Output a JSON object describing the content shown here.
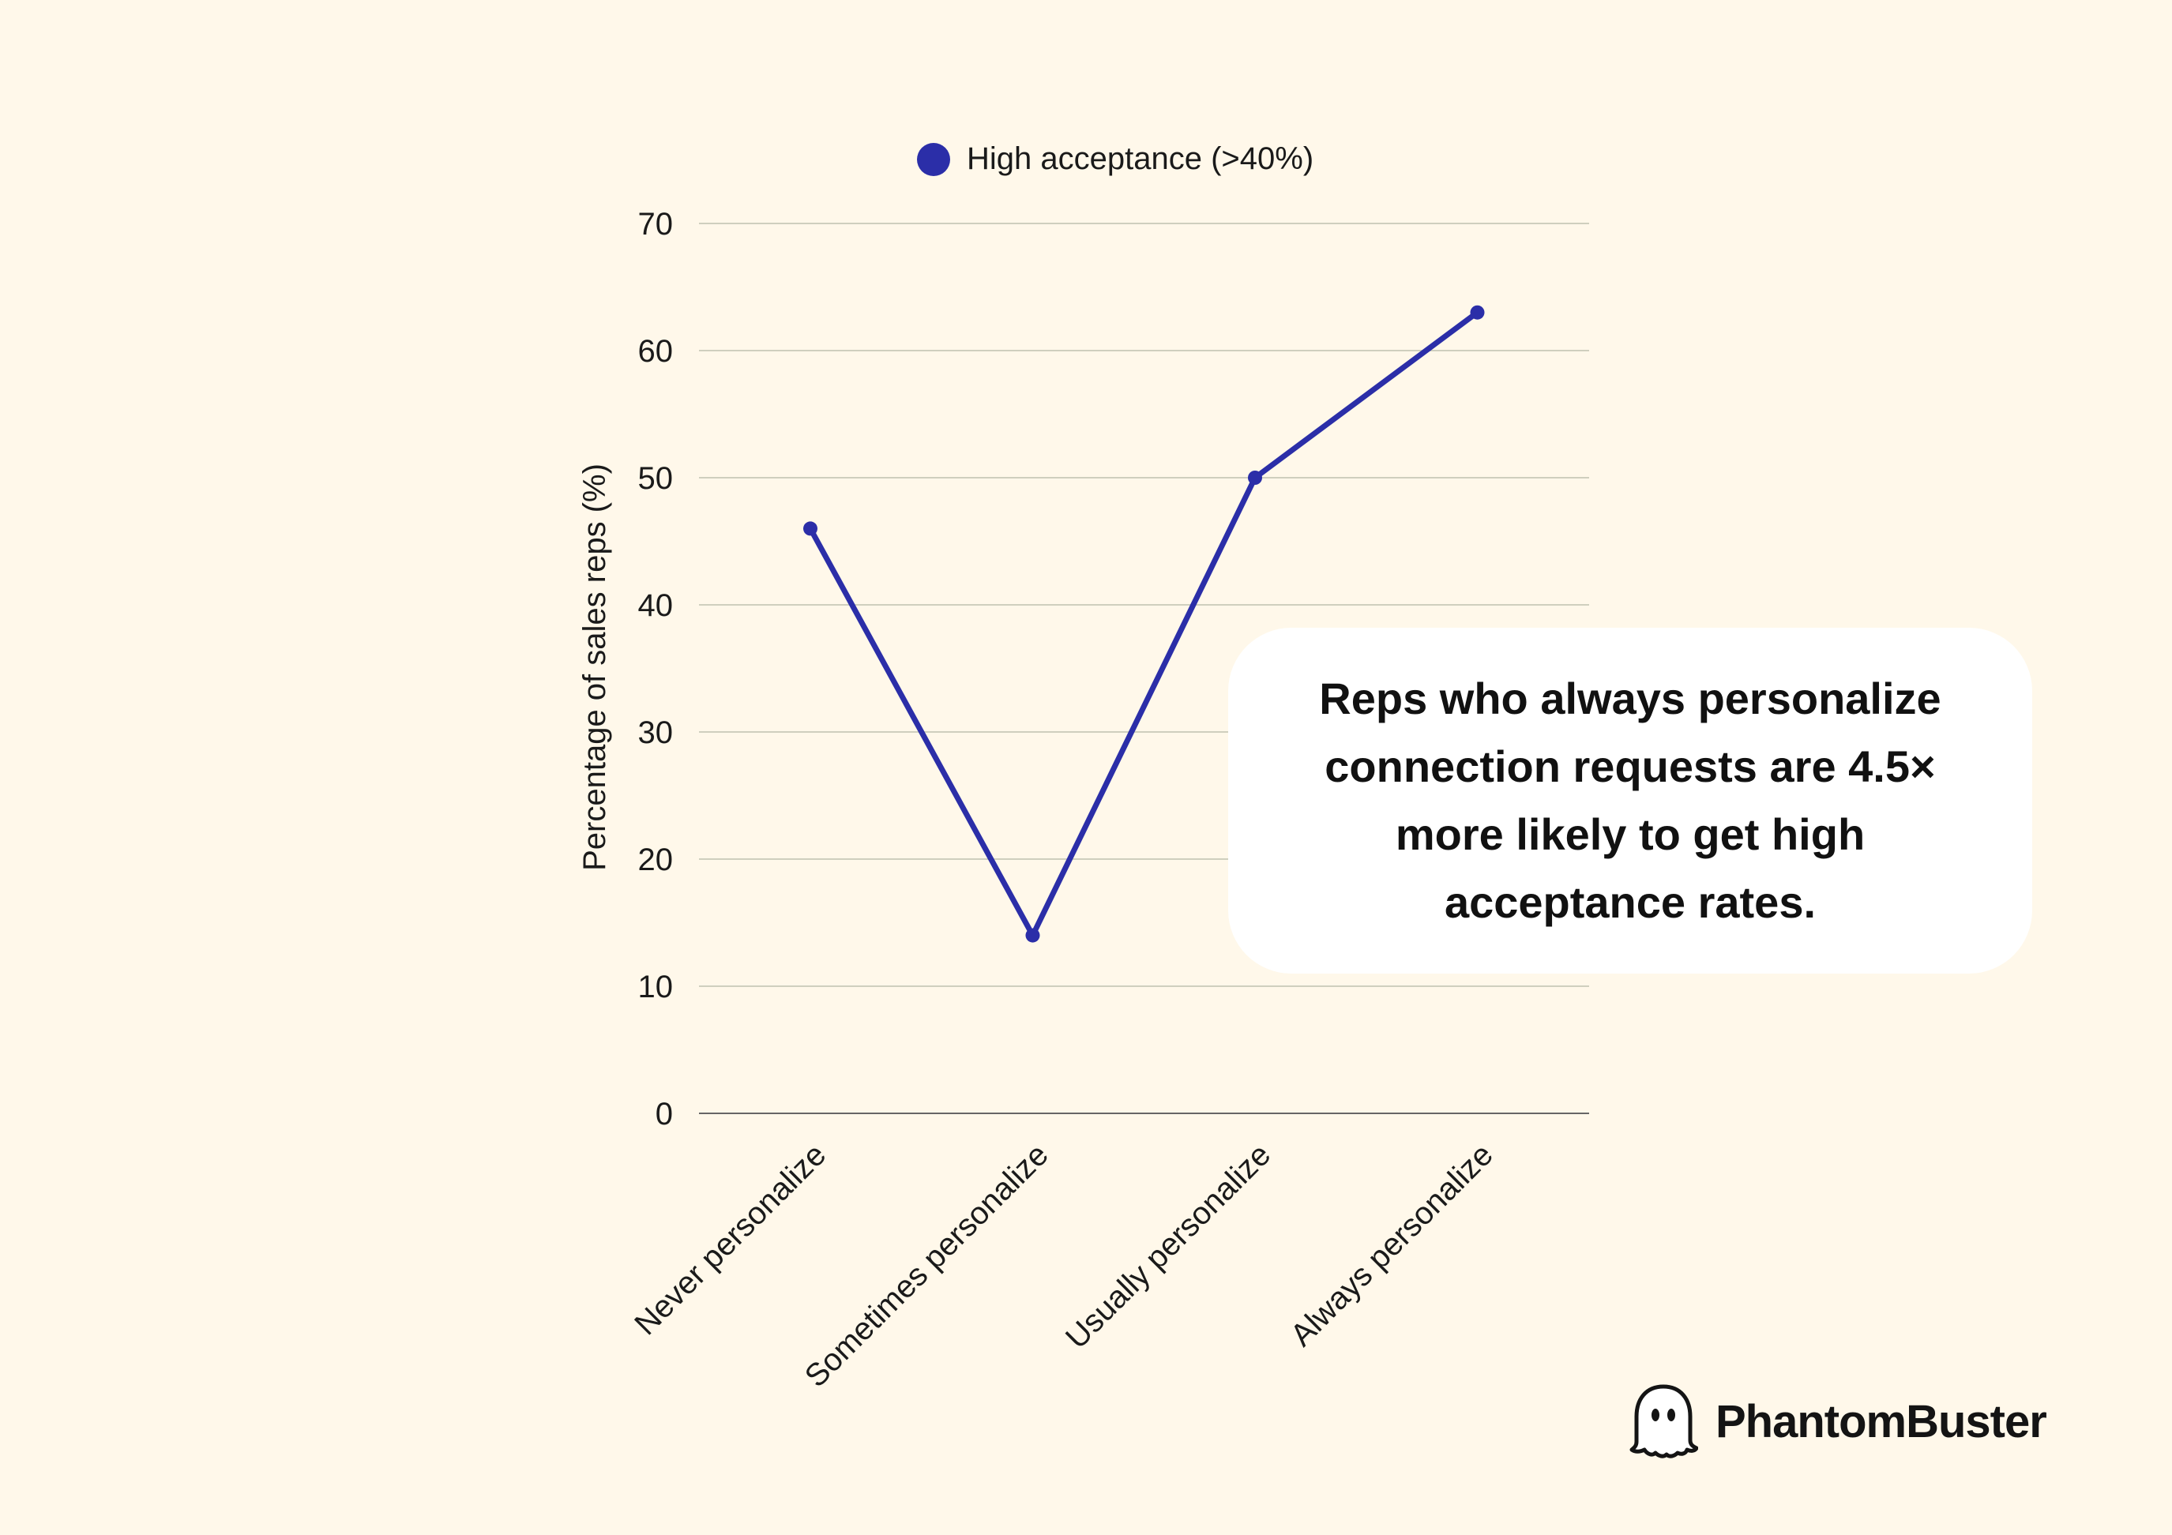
{
  "colors": {
    "background": "#FFF8EA",
    "series": "#2B2EA8",
    "grid": "#CFCFBE",
    "baseline": "#666666",
    "text": "#1a1a1a"
  },
  "chart_data": {
    "type": "line",
    "categories": [
      "Never personalize",
      "Sometimes personalize",
      "Usually personalize",
      "Always personalize"
    ],
    "series": [
      {
        "name": "High acceptance (>40%)",
        "values": [
          46,
          14,
          50,
          63
        ]
      }
    ],
    "title": "",
    "xlabel": "",
    "ylabel": "Percentage of sales reps (%)",
    "ylim": [
      0,
      70
    ],
    "yticks": [
      0,
      10,
      20,
      30,
      40,
      50,
      60,
      70
    ],
    "grid": true,
    "legend_position": "top-center"
  },
  "callout": {
    "text": "Reps who always personalize connection requests are 4.5× more likely to get high acceptance rates."
  },
  "brand": {
    "name": "PhantomBuster",
    "icon": "ghost-icon"
  }
}
